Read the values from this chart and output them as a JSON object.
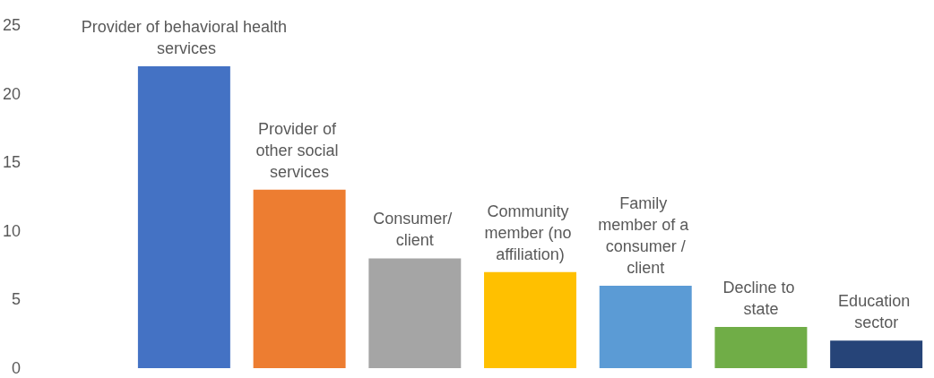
{
  "chart_data": {
    "type": "bar",
    "categories": [
      "Provider of behavioral health services",
      "Provider of other social services",
      "Consumer/ client",
      "Community member (no affiliation)",
      "Family member of a consumer /client",
      "Decline to state",
      "Education sector"
    ],
    "values": [
      22,
      13,
      8,
      7,
      6,
      3,
      2
    ],
    "colors": [
      "#4472c4",
      "#ed7d31",
      "#a5a5a5",
      "#ffc000",
      "#5b9bd5",
      "#70ad47",
      "#264478"
    ],
    "ylim": [
      0,
      25
    ],
    "yticks": [
      0,
      5,
      10,
      15,
      20,
      25
    ],
    "grid": false,
    "tick_labels": "y"
  }
}
